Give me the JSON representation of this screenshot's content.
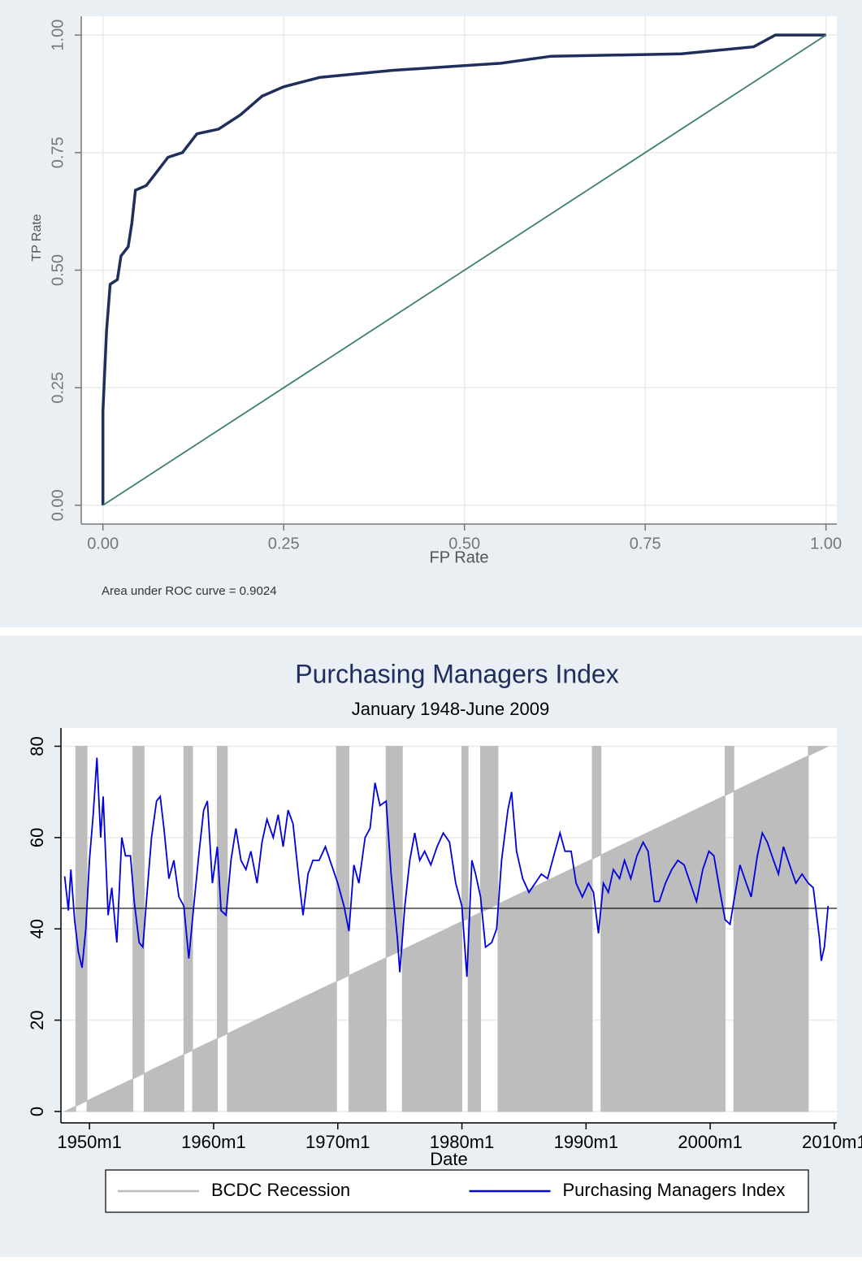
{
  "chart_data": [
    {
      "type": "line",
      "xlabel": "FP Rate",
      "ylabel": "TP Rate",
      "annotation": "Area under ROC curve = 0.9024",
      "xlim": [
        -0.03,
        1.015
      ],
      "ylim": [
        -0.04,
        1.04
      ],
      "xticks": [
        {
          "value": 0,
          "label": "0.00"
        },
        0.25,
        {
          "value": 0.5,
          "label": "0.50"
        },
        0.75,
        {
          "value": 1,
          "label": "1.00"
        }
      ],
      "yticks": [
        {
          "value": 0,
          "label": "0.00"
        },
        0.25,
        {
          "value": 0.5,
          "label": "0.50"
        },
        0.75,
        {
          "value": 1,
          "label": "1.00"
        }
      ],
      "grid": true,
      "series": [
        {
          "color": "#1f2f5c",
          "x": [
            0,
            0,
            0.005,
            0.01,
            0.02,
            0.025,
            0.035,
            0.04,
            0.045,
            0.06,
            0.07,
            0.08,
            0.09,
            0.11,
            0.13,
            0.16,
            0.19,
            0.22,
            0.25,
            0.3,
            0.4,
            0.5,
            0.55,
            0.62,
            0.8,
            0.9,
            0.93,
            1
          ],
          "values": [
            0,
            0.2,
            0.37,
            0.47,
            0.48,
            0.53,
            0.55,
            0.6,
            0.67,
            0.68,
            0.7,
            0.72,
            0.74,
            0.75,
            0.79,
            0.8,
            0.83,
            0.87,
            0.89,
            0.91,
            0.925,
            0.935,
            0.94,
            0.955,
            0.96,
            0.975,
            1,
            1
          ]
        },
        {
          "color": "#3d7f6e",
          "x": [
            0,
            1
          ],
          "values": [
            0,
            1
          ]
        }
      ]
    },
    {
      "type": "line",
      "title": "Purchasing Managers Index",
      "subtitle": "January 1948-June 2009",
      "xlabel": "Date",
      "xlim": [
        1947.7,
        2010.2
      ],
      "ylim": [
        -2.5,
        84
      ],
      "xticks": [
        {
          "value": 1950,
          "label": "1950m1"
        },
        {
          "value": 1960,
          "label": "1960m1"
        },
        {
          "value": 1970,
          "label": "1970m1"
        },
        {
          "value": 1980,
          "label": "1980m1"
        },
        {
          "value": 1990,
          "label": "1990m1"
        },
        {
          "value": 2000,
          "label": "2000m1"
        },
        {
          "value": 2010,
          "label": "2010m1"
        }
      ],
      "yticks": [
        0,
        20,
        40,
        60,
        80
      ],
      "grid": true,
      "hline": 44.5,
      "legend": "bottom",
      "series": [
        {
          "name": "BCDC Recession",
          "color": "#bdbdbd",
          "style": "area",
          "x": [
            1948.0,
            1948.9,
            1948.9,
            1949.8,
            1949.8,
            1953.5,
            1953.5,
            1954.4,
            1954.4,
            1957.6,
            1957.6,
            1958.3,
            1958.3,
            1960.3,
            1960.3,
            1961.1,
            1961.1,
            1969.9,
            1969.9,
            1970.9,
            1970.9,
            1973.9,
            1973.9,
            1975.2,
            1975.2,
            1980.0,
            1980.0,
            1980.5,
            1980.5,
            1981.5,
            1981.5,
            1982.9,
            1982.9,
            1990.5,
            1990.5,
            1991.2,
            1991.2,
            2001.2,
            2001.2,
            2001.9,
            2001.9,
            2007.9,
            2007.9,
            2009.5
          ],
          "values": [
            0,
            0,
            80,
            80,
            0,
            0,
            80,
            80,
            0,
            0,
            80,
            80,
            0,
            0,
            80,
            80,
            0,
            0,
            80,
            80,
            0,
            0,
            80,
            80,
            0,
            0,
            80,
            80,
            0,
            0,
            80,
            80,
            0,
            0,
            80,
            80,
            0,
            0,
            80,
            80,
            0,
            0,
            80,
            80
          ]
        },
        {
          "name": "Purchasing Managers Index",
          "color": "#0000e0",
          "x": [
            1948.0,
            1948.3,
            1948.5,
            1948.8,
            1949.1,
            1949.4,
            1949.7,
            1950.0,
            1950.3,
            1950.6,
            1950.9,
            1951.1,
            1951.5,
            1951.8,
            1952.2,
            1952.6,
            1952.9,
            1953.3,
            1953.6,
            1954.0,
            1954.3,
            1954.7,
            1955.0,
            1955.4,
            1955.7,
            1956.0,
            1956.4,
            1956.8,
            1957.2,
            1957.6,
            1958.0,
            1958.4,
            1958.8,
            1959.2,
            1959.5,
            1959.9,
            1960.3,
            1960.6,
            1961.0,
            1961.4,
            1961.8,
            1962.2,
            1962.6,
            1963.0,
            1963.5,
            1963.9,
            1964.3,
            1964.8,
            1965.2,
            1965.6,
            1966.0,
            1966.4,
            1966.9,
            1967.2,
            1967.6,
            1968.0,
            1968.5,
            1969.0,
            1969.5,
            1970.0,
            1970.5,
            1970.9,
            1971.3,
            1971.7,
            1972.2,
            1972.6,
            1973.0,
            1973.4,
            1973.9,
            1974.3,
            1974.8,
            1975.0,
            1975.4,
            1975.8,
            1976.2,
            1976.6,
            1977.0,
            1977.5,
            1978.0,
            1978.5,
            1979.0,
            1979.5,
            1980.0,
            1980.4,
            1980.8,
            1981.1,
            1981.5,
            1981.9,
            1982.4,
            1982.8,
            1983.2,
            1983.7,
            1984.0,
            1984.4,
            1984.9,
            1985.4,
            1985.9,
            1986.4,
            1986.9,
            1987.4,
            1987.9,
            1988.3,
            1988.8,
            1989.2,
            1989.7,
            1990.2,
            1990.6,
            1991.0,
            1991.4,
            1991.8,
            1992.2,
            1992.7,
            1993.1,
            1993.6,
            1994.1,
            1994.6,
            1995.0,
            1995.5,
            1995.9,
            1996.4,
            1996.9,
            1997.4,
            1997.9,
            1998.4,
            1998.9,
            1999.4,
            1999.9,
            2000.3,
            2000.8,
            2001.2,
            2001.6,
            2001.9,
            2002.4,
            2002.9,
            2003.3,
            2003.8,
            2004.2,
            2004.6,
            2005.1,
            2005.5,
            2005.9,
            2006.4,
            2006.9,
            2007.4,
            2007.9,
            2008.3,
            2008.8,
            2008.95,
            2009.2,
            2009.5
          ],
          "values": [
            51.5,
            44,
            53,
            42,
            35,
            31.5,
            40,
            55,
            65,
            77.5,
            60,
            69,
            43,
            49,
            37,
            60,
            56,
            56,
            46,
            37,
            36,
            50,
            60,
            68,
            69,
            62,
            51,
            55,
            47,
            45,
            33.5,
            45,
            56,
            66,
            68,
            50,
            58,
            44,
            43,
            55,
            62,
            55,
            53,
            57,
            50,
            59,
            64,
            60,
            65,
            58,
            66,
            63,
            50,
            43,
            52,
            55,
            55,
            58,
            54,
            50,
            45,
            39.5,
            54,
            50,
            60,
            62,
            72,
            67,
            68,
            52,
            38,
            30.5,
            45,
            55,
            61,
            55,
            57,
            54,
            58,
            61,
            59,
            50,
            45,
            29.5,
            55,
            52,
            47,
            36,
            37,
            40,
            55,
            66,
            70,
            57,
            51,
            48,
            50,
            52,
            51,
            56,
            61,
            57,
            57,
            50,
            47,
            50,
            48,
            39,
            50,
            48,
            53,
            51,
            55,
            51,
            56,
            59,
            57,
            46,
            46,
            50,
            53,
            55,
            54,
            50,
            46,
            53,
            57,
            56,
            48,
            42,
            41,
            46,
            54,
            50,
            47,
            56,
            61,
            59,
            55,
            52,
            58,
            54,
            50,
            52,
            50,
            49,
            38,
            33,
            36,
            45
          ]
        }
      ]
    }
  ]
}
